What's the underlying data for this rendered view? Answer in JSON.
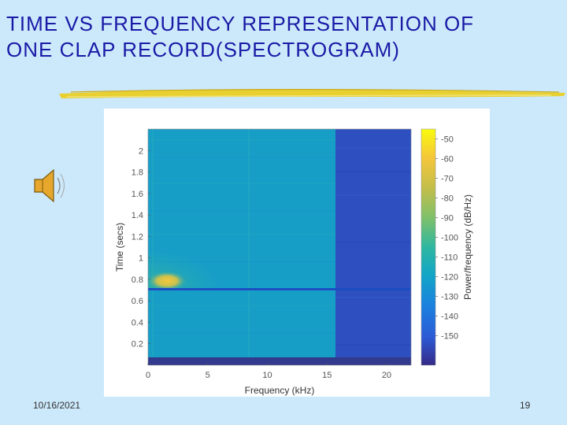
{
  "slide": {
    "title_line1": "TIME VS FREQUENCY REPRESENTATION OF",
    "title_line2": "ONE CLAP RECORD(SPECTROGRAM)",
    "date": "10/16/2021",
    "page_number": "19",
    "audio_icon": "speaker-icon"
  },
  "colors": {
    "background": "#cce9fb",
    "title": "#1a1aa6",
    "brush": "#e8d030"
  },
  "chart_data": {
    "type": "heatmap",
    "title": "",
    "xlabel": "Frequency (kHz)",
    "ylabel": "Time (secs)",
    "xlim": [
      0,
      22.05
    ],
    "ylim": [
      0,
      2.2
    ],
    "x_ticks": [
      0,
      5,
      10,
      15,
      20
    ],
    "x_tick_labels": [
      "0",
      "5",
      "10",
      "15",
      "20"
    ],
    "y_ticks": [
      0.2,
      0.4,
      0.6,
      0.8,
      1.0,
      1.2,
      1.4,
      1.6,
      1.8,
      2.0
    ],
    "y_tick_labels": [
      "0.2",
      "0.4",
      "0.6",
      "0.8",
      "1",
      "1.2",
      "1.4",
      "1.6",
      "1.8",
      "2"
    ],
    "colorbar": {
      "label": "Power/frequency (dB/Hz)",
      "range": [
        -165,
        -45
      ],
      "ticks": [
        -50,
        -60,
        -70,
        -80,
        -90,
        -100,
        -110,
        -120,
        -130,
        -140,
        -150
      ],
      "tick_labels": [
        "-50",
        "-60",
        "-70",
        "-80",
        "-90",
        "-100",
        "-110",
        "-120",
        "-130",
        "-140",
        "-150"
      ],
      "colormap": "parula"
    },
    "regions": [
      {
        "name": "low band (0-15.5 kHz)",
        "x_range": [
          0,
          15.5
        ],
        "level_db": -112
      },
      {
        "name": "high band (15.5-22 kHz)",
        "x_range": [
          15.5,
          22.05
        ],
        "level_db": -150
      },
      {
        "name": "clap onset",
        "time_s": 0.75,
        "x_range": [
          0.5,
          3.5
        ],
        "level_db": -68
      },
      {
        "name": "onset boundary",
        "time_s": 0.68,
        "level_db": -130
      },
      {
        "name": "silence start",
        "time_s": 0.04,
        "level_db": -158
      }
    ]
  }
}
